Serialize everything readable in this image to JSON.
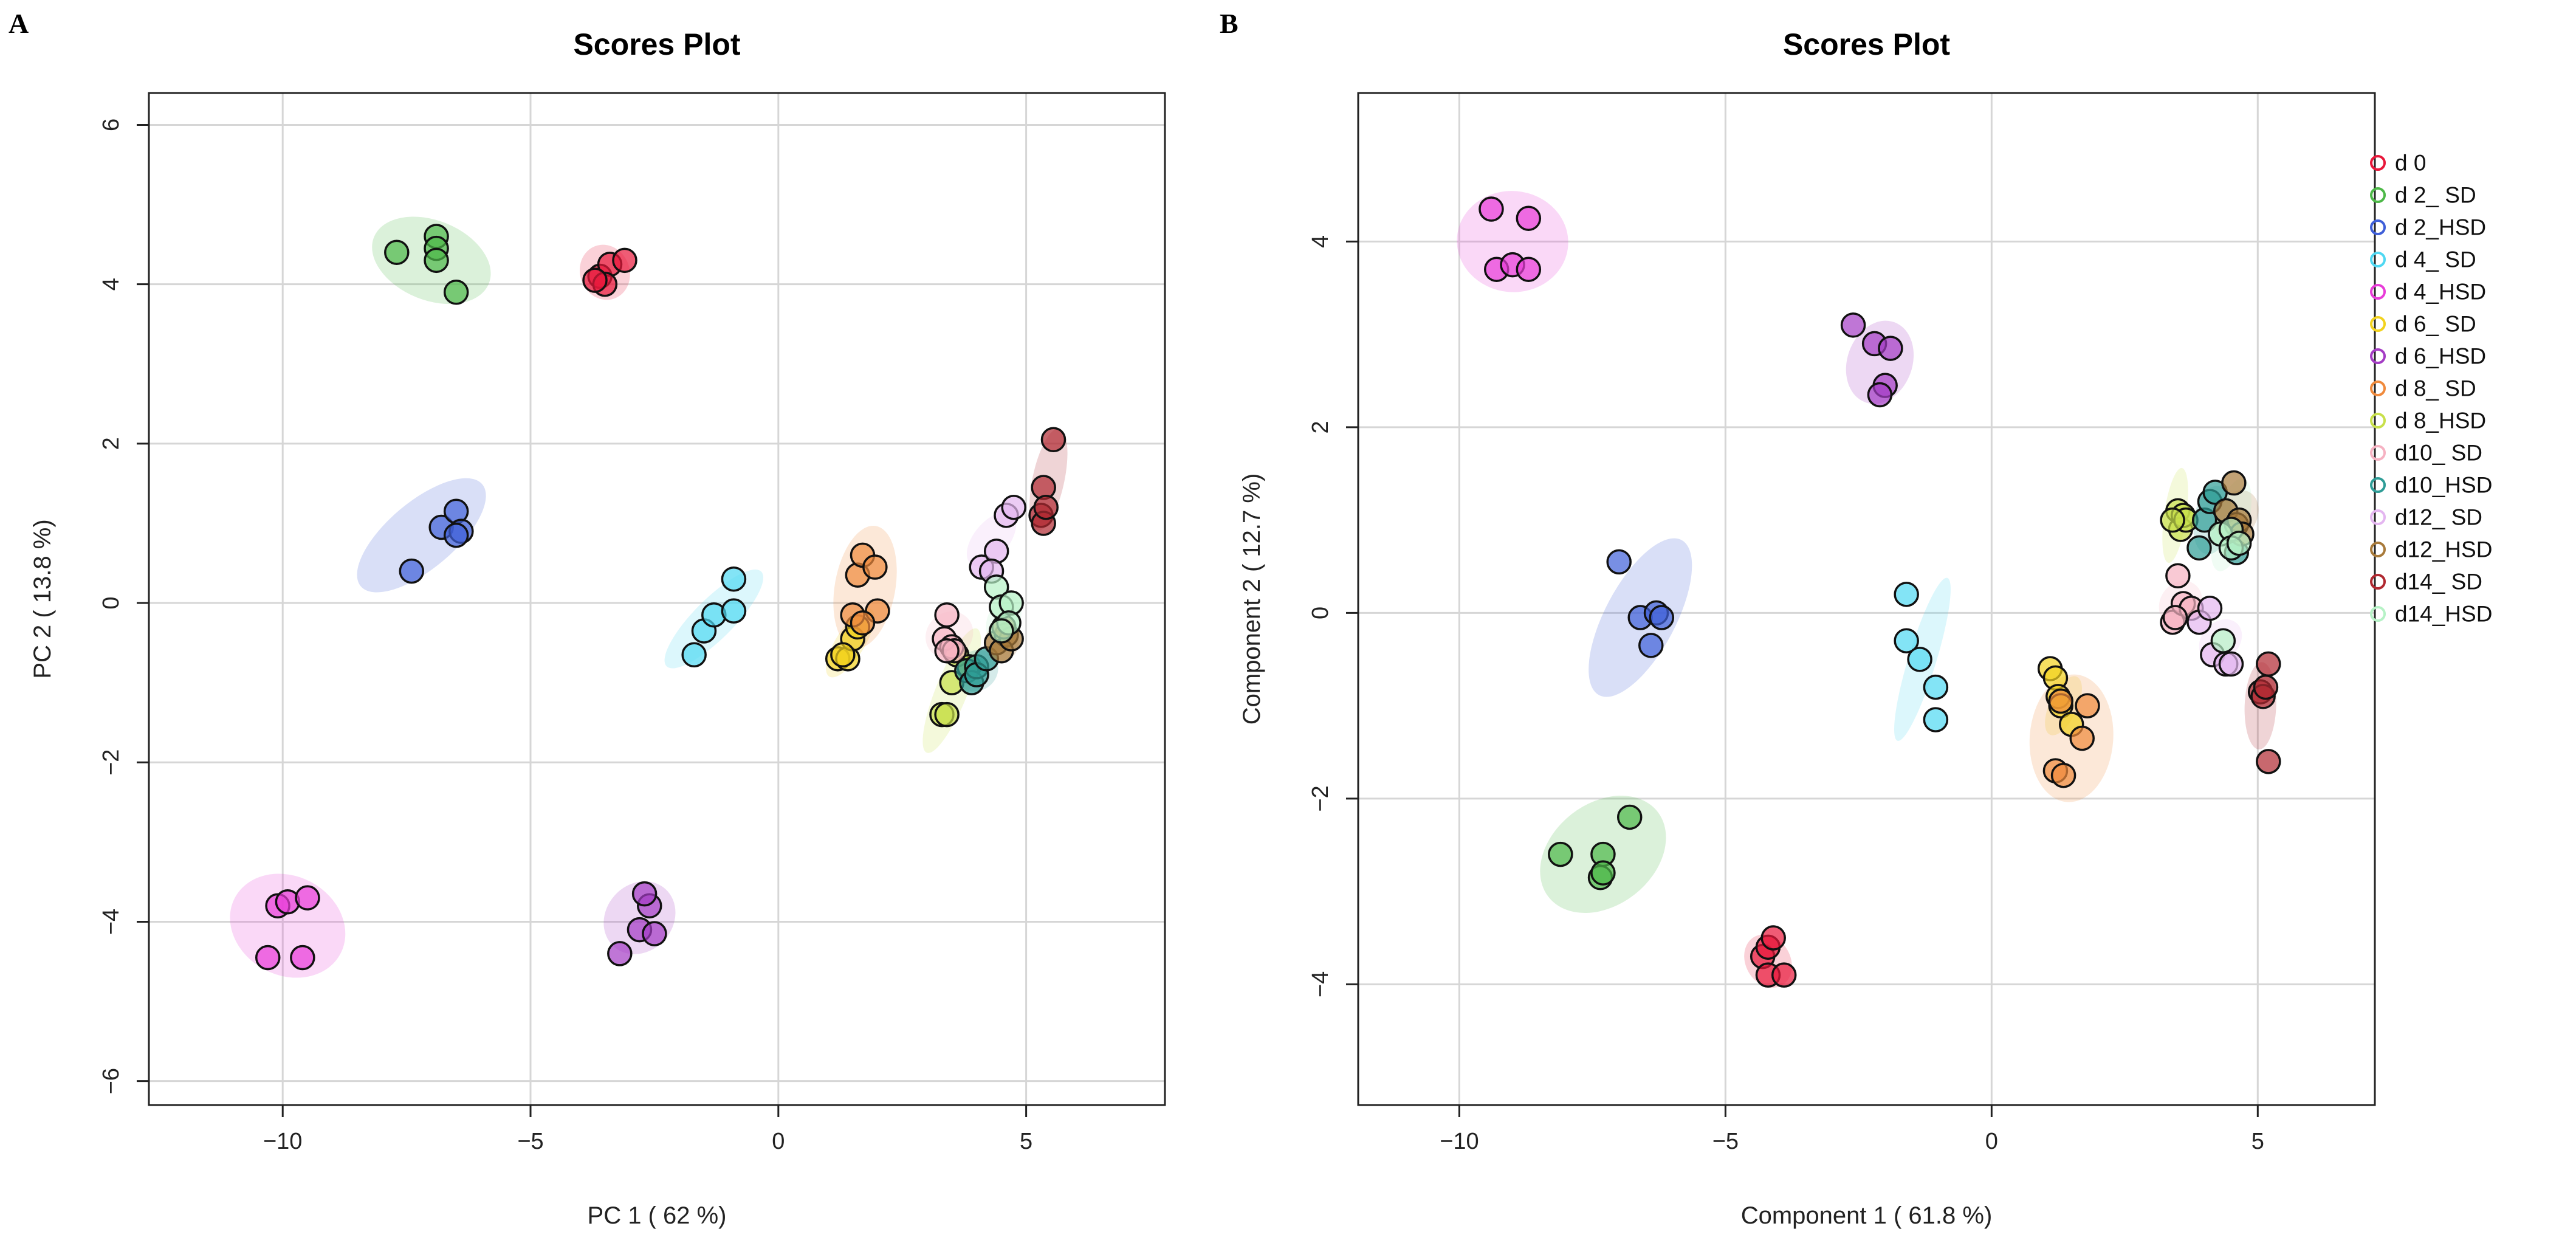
{
  "panels": [
    {
      "letter": "A"
    },
    {
      "letter": "B"
    }
  ],
  "groups": [
    {
      "name": "d 0",
      "color": "#E8173A"
    },
    {
      "name": "d 2_ SD",
      "color": "#4DB848"
    },
    {
      "name": "d 2_HSD",
      "color": "#3F5FD8"
    },
    {
      "name": "d 4_ SD",
      "color": "#4FD8F2"
    },
    {
      "name": "d 4_HSD",
      "color": "#E83CD8"
    },
    {
      "name": "d 6_ SD",
      "color": "#F2D21E"
    },
    {
      "name": "d 6_HSD",
      "color": "#A43CC4"
    },
    {
      "name": "d 8_ SD",
      "color": "#F08A3C"
    },
    {
      "name": "d 8_HSD",
      "color": "#C8E04A"
    },
    {
      "name": "d10_ SD",
      "color": "#F6B2C2"
    },
    {
      "name": "d10_HSD",
      "color": "#2E9C96"
    },
    {
      "name": "d12_ SD",
      "color": "#E4B6F0"
    },
    {
      "name": "d12_HSD",
      "color": "#A87A3A"
    },
    {
      "name": "d14_ SD",
      "color": "#B02830"
    },
    {
      "name": "d14_HSD",
      "color": "#B6F2C6"
    }
  ],
  "chart_data": [
    {
      "type": "scatter",
      "title": "Scores Plot",
      "xlabel": "PC 1 ( 62 %)",
      "ylabel": "PC 2 ( 13.8 %)",
      "xlim": [
        -12.7,
        7.8
      ],
      "ylim": [
        -6.3,
        6.4
      ],
      "xticks": [
        -10,
        -5,
        0,
        5
      ],
      "xtick_labels": [
        "−10",
        "−5",
        "0",
        "5"
      ],
      "yticks": [
        -6,
        -4,
        -2,
        0,
        2,
        4,
        6
      ],
      "ytick_labels": [
        "−6",
        "−4",
        "−2",
        "0",
        "2",
        "4",
        "6"
      ],
      "grid": true,
      "legend": false,
      "ellipses": [
        {
          "group": 0,
          "cx": -3.5,
          "cy": 4.15,
          "rx": 0.5,
          "ry": 0.35,
          "angle": 20
        },
        {
          "group": 1,
          "cx": -7.0,
          "cy": 4.3,
          "rx": 1.25,
          "ry": 0.5,
          "angle": -22
        },
        {
          "group": 2,
          "cx": -7.2,
          "cy": 0.85,
          "rx": 1.6,
          "ry": 0.42,
          "angle": 40
        },
        {
          "group": 3,
          "cx": -1.3,
          "cy": -0.2,
          "rx": 1.35,
          "ry": 0.25,
          "angle": 45
        },
        {
          "group": 4,
          "cx": -9.9,
          "cy": -4.05,
          "rx": 1.0,
          "ry": 0.75,
          "angle": 62
        },
        {
          "group": 5,
          "cx": 1.45,
          "cy": -0.5,
          "rx": 0.8,
          "ry": 0.18,
          "angle": 58
        },
        {
          "group": 6,
          "cx": -2.8,
          "cy": -3.95,
          "rx": 0.78,
          "ry": 0.42,
          "angle": 48
        },
        {
          "group": 7,
          "cx": 1.75,
          "cy": 0.2,
          "rx": 1.25,
          "ry": 0.38,
          "angle": 80
        },
        {
          "group": 8,
          "cx": 3.5,
          "cy": -1.1,
          "rx": 1.35,
          "ry": 0.2,
          "angle": 68
        },
        {
          "group": 9,
          "cx": 3.45,
          "cy": -0.4,
          "rx": 0.5,
          "ry": 0.28,
          "angle": 40
        },
        {
          "group": 10,
          "cx": 4.0,
          "cy": -0.85,
          "rx": 0.45,
          "ry": 0.25,
          "angle": 35
        },
        {
          "group": 11,
          "cx": 4.3,
          "cy": 0.8,
          "rx": 0.65,
          "ry": 0.22,
          "angle": 50
        },
        {
          "group": 12,
          "cx": 4.5,
          "cy": -0.5,
          "rx": 0.35,
          "ry": 0.22,
          "angle": 30
        },
        {
          "group": 13,
          "cx": 5.45,
          "cy": 1.55,
          "rx": 1.05,
          "ry": 0.2,
          "angle": 78
        },
        {
          "group": 14,
          "cx": 4.55,
          "cy": -0.2,
          "rx": 0.5,
          "ry": 0.2,
          "angle": 65
        }
      ],
      "points": [
        {
          "g": 0,
          "x": -3.6,
          "y": 4.1
        },
        {
          "g": 0,
          "x": -3.4,
          "y": 4.25
        },
        {
          "g": 0,
          "x": -3.5,
          "y": 4.0
        },
        {
          "g": 0,
          "x": -3.1,
          "y": 4.3
        },
        {
          "g": 0,
          "x": -3.7,
          "y": 4.05
        },
        {
          "g": 1,
          "x": -7.7,
          "y": 4.4
        },
        {
          "g": 1,
          "x": -6.9,
          "y": 4.6
        },
        {
          "g": 1,
          "x": -6.9,
          "y": 4.45
        },
        {
          "g": 1,
          "x": -6.9,
          "y": 4.3
        },
        {
          "g": 1,
          "x": -6.5,
          "y": 3.9
        },
        {
          "g": 2,
          "x": -7.4,
          "y": 0.4
        },
        {
          "g": 2,
          "x": -6.8,
          "y": 0.95
        },
        {
          "g": 2,
          "x": -6.5,
          "y": 1.15
        },
        {
          "g": 2,
          "x": -6.4,
          "y": 0.9
        },
        {
          "g": 2,
          "x": -6.5,
          "y": 0.85
        },
        {
          "g": 3,
          "x": -1.7,
          "y": -0.65
        },
        {
          "g": 3,
          "x": -1.5,
          "y": -0.35
        },
        {
          "g": 3,
          "x": -1.3,
          "y": -0.15
        },
        {
          "g": 3,
          "x": -0.9,
          "y": -0.1
        },
        {
          "g": 3,
          "x": -0.9,
          "y": 0.3
        },
        {
          "g": 4,
          "x": -10.3,
          "y": -4.45
        },
        {
          "g": 4,
          "x": -10.1,
          "y": -3.8
        },
        {
          "g": 4,
          "x": -9.9,
          "y": -3.75
        },
        {
          "g": 4,
          "x": -9.5,
          "y": -3.7
        },
        {
          "g": 4,
          "x": -9.6,
          "y": -4.45
        },
        {
          "g": 5,
          "x": 1.2,
          "y": -0.7
        },
        {
          "g": 5,
          "x": 1.4,
          "y": -0.7
        },
        {
          "g": 5,
          "x": 1.5,
          "y": -0.45
        },
        {
          "g": 5,
          "x": 1.6,
          "y": -0.3
        },
        {
          "g": 5,
          "x": 1.3,
          "y": -0.65
        },
        {
          "g": 6,
          "x": -3.2,
          "y": -4.4
        },
        {
          "g": 6,
          "x": -2.8,
          "y": -4.1
        },
        {
          "g": 6,
          "x": -2.5,
          "y": -4.15
        },
        {
          "g": 6,
          "x": -2.6,
          "y": -3.8
        },
        {
          "g": 6,
          "x": -2.7,
          "y": -3.65
        },
        {
          "g": 7,
          "x": 1.5,
          "y": -0.15
        },
        {
          "g": 7,
          "x": 1.6,
          "y": 0.35
        },
        {
          "g": 7,
          "x": 1.7,
          "y": 0.6
        },
        {
          "g": 7,
          "x": 1.95,
          "y": 0.45
        },
        {
          "g": 7,
          "x": 2.0,
          "y": -0.1
        },
        {
          "g": 7,
          "x": 1.7,
          "y": -0.25
        },
        {
          "g": 8,
          "x": 3.3,
          "y": -1.4
        },
        {
          "g": 8,
          "x": 3.4,
          "y": -1.4
        },
        {
          "g": 8,
          "x": 3.5,
          "y": -1.0
        },
        {
          "g": 8,
          "x": 3.6,
          "y": -0.65
        },
        {
          "g": 8,
          "x": 3.85,
          "y": -0.8
        },
        {
          "g": 9,
          "x": 3.4,
          "y": -0.15
        },
        {
          "g": 9,
          "x": 3.35,
          "y": -0.45
        },
        {
          "g": 9,
          "x": 3.5,
          "y": -0.55
        },
        {
          "g": 9,
          "x": 3.55,
          "y": -0.6
        },
        {
          "g": 9,
          "x": 3.4,
          "y": -0.6
        },
        {
          "g": 10,
          "x": 3.8,
          "y": -0.85
        },
        {
          "g": 10,
          "x": 3.9,
          "y": -1.0
        },
        {
          "g": 10,
          "x": 4.0,
          "y": -0.8
        },
        {
          "g": 10,
          "x": 4.0,
          "y": -0.9
        },
        {
          "g": 10,
          "x": 4.2,
          "y": -0.7
        },
        {
          "g": 11,
          "x": 4.1,
          "y": 0.45
        },
        {
          "g": 11,
          "x": 4.4,
          "y": 0.65
        },
        {
          "g": 11,
          "x": 4.6,
          "y": 1.1
        },
        {
          "g": 11,
          "x": 4.75,
          "y": 1.2
        },
        {
          "g": 11,
          "x": 4.3,
          "y": 0.4
        },
        {
          "g": 12,
          "x": 4.4,
          "y": -0.5
        },
        {
          "g": 12,
          "x": 4.6,
          "y": -0.4
        },
        {
          "g": 12,
          "x": 4.5,
          "y": -0.6
        },
        {
          "g": 12,
          "x": 4.7,
          "y": -0.45
        },
        {
          "g": 12,
          "x": 4.55,
          "y": -0.3
        },
        {
          "g": 13,
          "x": 5.3,
          "y": 1.1
        },
        {
          "g": 13,
          "x": 5.35,
          "y": 1.45
        },
        {
          "g": 13,
          "x": 5.55,
          "y": 2.05
        },
        {
          "g": 13,
          "x": 5.35,
          "y": 1.0
        },
        {
          "g": 13,
          "x": 5.4,
          "y": 1.2
        },
        {
          "g": 14,
          "x": 4.4,
          "y": 0.2
        },
        {
          "g": 14,
          "x": 4.5,
          "y": -0.05
        },
        {
          "g": 14,
          "x": 4.7,
          "y": 0.0
        },
        {
          "g": 14,
          "x": 4.65,
          "y": -0.25
        },
        {
          "g": 14,
          "x": 4.5,
          "y": -0.35
        }
      ]
    },
    {
      "type": "scatter",
      "title": "Scores Plot",
      "xlabel": "Component 1 ( 61.8 %)",
      "ylabel": "Component 2 ( 12.7 %)",
      "xlim": [
        -11.9,
        7.2
      ],
      "ylim": [
        -5.3,
        5.6
      ],
      "xticks": [
        -10,
        -5,
        0,
        5
      ],
      "xtick_labels": [
        "−10",
        "−5",
        "0",
        "5"
      ],
      "yticks": [
        -4,
        -2,
        0,
        2,
        4
      ],
      "ytick_labels": [
        "−4",
        "−2",
        "0",
        "2",
        "4"
      ],
      "grid": true,
      "legend": true,
      "legend_position": "right",
      "ellipses": [
        {
          "group": 0,
          "cx": -4.2,
          "cy": -3.75,
          "rx": 0.42,
          "ry": 0.3,
          "angle": 30
        },
        {
          "group": 1,
          "cx": -7.3,
          "cy": -2.6,
          "rx": 1.3,
          "ry": 0.55,
          "angle": 38
        },
        {
          "group": 2,
          "cx": -6.6,
          "cy": -0.05,
          "rx": 1.65,
          "ry": 0.38,
          "angle": 62
        },
        {
          "group": 3,
          "cx": -1.3,
          "cy": -0.5,
          "rx": 1.6,
          "ry": 0.15,
          "angle": 73
        },
        {
          "group": 4,
          "cx": -9.0,
          "cy": 4.0,
          "rx": 0.95,
          "ry": 0.6,
          "angle": 85
        },
        {
          "group": 5,
          "cx": 1.35,
          "cy": -1.0,
          "rx": 0.6,
          "ry": 0.15,
          "angle": 65
        },
        {
          "group": 6,
          "cx": -2.1,
          "cy": 2.7,
          "rx": 0.8,
          "ry": 0.35,
          "angle": 70
        },
        {
          "group": 7,
          "cx": 1.5,
          "cy": -1.35,
          "rx": 1.2,
          "ry": 0.45,
          "angle": 86
        },
        {
          "group": 8,
          "cx": 3.45,
          "cy": 1.05,
          "rx": 0.9,
          "ry": 0.12,
          "angle": 82
        },
        {
          "group": 9,
          "cx": 3.55,
          "cy": 0.1,
          "rx": 0.45,
          "ry": 0.22,
          "angle": 55
        },
        {
          "group": 10,
          "cx": 4.15,
          "cy": 1.0,
          "rx": 0.65,
          "ry": 0.2,
          "angle": 80
        },
        {
          "group": 11,
          "cx": 4.3,
          "cy": -0.3,
          "rx": 0.45,
          "ry": 0.2,
          "angle": 45
        },
        {
          "group": 12,
          "cx": 4.6,
          "cy": 1.05,
          "rx": 0.5,
          "ry": 0.22,
          "angle": 60
        },
        {
          "group": 13,
          "cx": 5.05,
          "cy": -1.0,
          "rx": 0.82,
          "ry": 0.17,
          "angle": 88
        },
        {
          "group": 14,
          "cx": 4.5,
          "cy": 0.95,
          "rx": 0.9,
          "ry": 0.18,
          "angle": 75
        }
      ],
      "points": [
        {
          "g": 0,
          "x": -4.3,
          "y": -3.7
        },
        {
          "g": 0,
          "x": -4.2,
          "y": -3.6
        },
        {
          "g": 0,
          "x": -4.1,
          "y": -3.5
        },
        {
          "g": 0,
          "x": -4.2,
          "y": -3.9
        },
        {
          "g": 0,
          "x": -3.9,
          "y": -3.9
        },
        {
          "g": 1,
          "x": -8.1,
          "y": -2.6
        },
        {
          "g": 1,
          "x": -7.3,
          "y": -2.6
        },
        {
          "g": 1,
          "x": -7.35,
          "y": -2.85
        },
        {
          "g": 1,
          "x": -7.3,
          "y": -2.8
        },
        {
          "g": 1,
          "x": -6.8,
          "y": -2.2
        },
        {
          "g": 2,
          "x": -7.0,
          "y": 0.55
        },
        {
          "g": 2,
          "x": -6.6,
          "y": -0.05
        },
        {
          "g": 2,
          "x": -6.3,
          "y": 0.0
        },
        {
          "g": 2,
          "x": -6.2,
          "y": -0.05
        },
        {
          "g": 2,
          "x": -6.4,
          "y": -0.35
        },
        {
          "g": 3,
          "x": -1.6,
          "y": 0.2
        },
        {
          "g": 3,
          "x": -1.6,
          "y": -0.3
        },
        {
          "g": 3,
          "x": -1.35,
          "y": -0.5
        },
        {
          "g": 3,
          "x": -1.05,
          "y": -0.8
        },
        {
          "g": 3,
          "x": -1.05,
          "y": -1.15
        },
        {
          "g": 4,
          "x": -9.4,
          "y": 4.35
        },
        {
          "g": 4,
          "x": -9.3,
          "y": 3.7
        },
        {
          "g": 4,
          "x": -9.0,
          "y": 3.75
        },
        {
          "g": 4,
          "x": -8.7,
          "y": 4.25
        },
        {
          "g": 4,
          "x": -8.7,
          "y": 3.7
        },
        {
          "g": 5,
          "x": 1.1,
          "y": -0.6
        },
        {
          "g": 5,
          "x": 1.2,
          "y": -0.7
        },
        {
          "g": 5,
          "x": 1.25,
          "y": -0.9
        },
        {
          "g": 5,
          "x": 1.3,
          "y": -1.0
        },
        {
          "g": 5,
          "x": 1.5,
          "y": -1.2
        },
        {
          "g": 6,
          "x": -2.6,
          "y": 3.1
        },
        {
          "g": 6,
          "x": -2.2,
          "y": 2.9
        },
        {
          "g": 6,
          "x": -1.9,
          "y": 2.85
        },
        {
          "g": 6,
          "x": -2.0,
          "y": 2.45
        },
        {
          "g": 6,
          "x": -2.1,
          "y": 2.35
        },
        {
          "g": 7,
          "x": 1.2,
          "y": -1.7
        },
        {
          "g": 7,
          "x": 1.35,
          "y": -1.75
        },
        {
          "g": 7,
          "x": 1.7,
          "y": -1.35
        },
        {
          "g": 7,
          "x": 1.8,
          "y": -1.0
        },
        {
          "g": 7,
          "x": 1.3,
          "y": -0.95
        },
        {
          "g": 8,
          "x": 3.5,
          "y": 1.1
        },
        {
          "g": 8,
          "x": 3.55,
          "y": 0.9
        },
        {
          "g": 8,
          "x": 3.6,
          "y": 1.05
        },
        {
          "g": 8,
          "x": 3.65,
          "y": 1.0
        },
        {
          "g": 8,
          "x": 3.4,
          "y": 1.0
        },
        {
          "g": 9,
          "x": 3.4,
          "y": -0.1
        },
        {
          "g": 9,
          "x": 3.5,
          "y": 0.4
        },
        {
          "g": 9,
          "x": 3.6,
          "y": 0.1
        },
        {
          "g": 9,
          "x": 3.75,
          "y": 0.05
        },
        {
          "g": 9,
          "x": 3.45,
          "y": -0.05
        },
        {
          "g": 10,
          "x": 3.9,
          "y": 0.7
        },
        {
          "g": 10,
          "x": 4.0,
          "y": 1.0
        },
        {
          "g": 10,
          "x": 4.1,
          "y": 1.2
        },
        {
          "g": 10,
          "x": 4.2,
          "y": 1.3
        },
        {
          "g": 10,
          "x": 4.6,
          "y": 0.65
        },
        {
          "g": 11,
          "x": 3.9,
          "y": -0.1
        },
        {
          "g": 11,
          "x": 4.1,
          "y": 0.05
        },
        {
          "g": 11,
          "x": 4.15,
          "y": -0.45
        },
        {
          "g": 11,
          "x": 4.4,
          "y": -0.55
        },
        {
          "g": 11,
          "x": 4.5,
          "y": -0.55
        },
        {
          "g": 12,
          "x": 4.4,
          "y": 1.1
        },
        {
          "g": 12,
          "x": 4.55,
          "y": 1.4
        },
        {
          "g": 12,
          "x": 4.6,
          "y": 0.95
        },
        {
          "g": 12,
          "x": 4.65,
          "y": 1.0
        },
        {
          "g": 12,
          "x": 4.7,
          "y": 0.85
        },
        {
          "g": 13,
          "x": 5.05,
          "y": -0.85
        },
        {
          "g": 13,
          "x": 5.1,
          "y": -0.9
        },
        {
          "g": 13,
          "x": 5.2,
          "y": -0.55
        },
        {
          "g": 13,
          "x": 5.2,
          "y": -1.6
        },
        {
          "g": 13,
          "x": 5.15,
          "y": -0.8
        },
        {
          "g": 14,
          "x": 4.3,
          "y": 0.85
        },
        {
          "g": 14,
          "x": 4.5,
          "y": 0.9
        },
        {
          "g": 14,
          "x": 4.5,
          "y": 0.7
        },
        {
          "g": 14,
          "x": 4.65,
          "y": 0.75
        },
        {
          "g": 14,
          "x": 4.35,
          "y": -0.3
        }
      ]
    }
  ]
}
